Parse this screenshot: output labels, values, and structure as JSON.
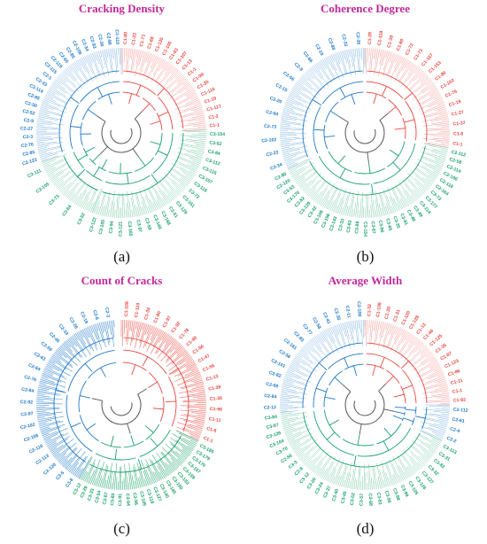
{
  "colors": {
    "title": "#c2289b",
    "red": "#e8463f",
    "blue": "#1e78c8",
    "green": "#19a06c",
    "gray": "#555555"
  },
  "panels": [
    {
      "title": "Cracking Density",
      "tag": "(a)",
      "segments": [
        {
          "color": "red",
          "start": 0,
          "end": 88,
          "fill": true,
          "labels": [
            "C1-80",
            "C1-22",
            "C1-71",
            "C1-68",
            "C1-135",
            "C1-105",
            "C1-63",
            "C1-107",
            "C1-13",
            "C1-1",
            "C1-99",
            "C1-35",
            "C1-116",
            "C1-19",
            "C1-117",
            "C1-2",
            "C1-1"
          ]
        },
        {
          "color": "green",
          "start": 88,
          "end": 200,
          "fill": true,
          "labels": [
            "C3-154",
            "C3-52",
            "C3-84",
            "C3-112",
            "C3-115",
            "C3-107",
            "C3-116",
            "C3-72",
            "C3-161",
            "C3-129",
            "C3-51",
            "C3-168",
            "C3-140",
            "C3-59",
            "C3-97",
            "C3-165",
            "C3-121",
            "C3-94",
            "C3-105",
            "C3-122"
          ]
        },
        {
          "color": "green",
          "start": 200,
          "end": 250,
          "fill": true,
          "labels": [
            "C3-52",
            "C3-64",
            "C3-73",
            "C3-105",
            "C3-111"
          ]
        },
        {
          "color": "blue",
          "start": 250,
          "end": 360,
          "fill": true,
          "labels": [
            "C2-123",
            "C2-85",
            "C2-76",
            "C2-3",
            "C2-27",
            "C2-9",
            "C2-52",
            "C2-50",
            "C2-85",
            "C3-114",
            "C2-33",
            "C2-1",
            "C2-115",
            "C2-119",
            "C2-60",
            "C2-85",
            "C2-108",
            "C2-34",
            "C2-93",
            "C2-30",
            "C2-86",
            "C1-110"
          ]
        }
      ]
    },
    {
      "title": "Coherence Degree",
      "tag": "(b)",
      "segments": [
        {
          "color": "red",
          "start": 0,
          "end": 100,
          "fill": true,
          "labels": [
            "C1-28",
            "C1-118",
            "C1-39",
            "C1-80",
            "C1-72",
            "C1-73",
            "C1-167",
            "C1-153",
            "C1-86",
            "C1-102",
            "C1-76",
            "C1-19",
            "C1-27",
            "C1-37",
            "C1-6",
            "C1-1"
          ]
        },
        {
          "color": "green",
          "start": 100,
          "end": 245,
          "fill": true,
          "labels": [
            "C2-112",
            "C2-58",
            "C2-114",
            "C2-100",
            "C2-116",
            "C2-164",
            "C3-73",
            "C3-177",
            "C3-114",
            "C3-49",
            "C3-48",
            "C3-91",
            "C3-35",
            "C3-65",
            "C3-96",
            "C3-87",
            "C3-154",
            "C3-88",
            "C3-83",
            "C3-33",
            "C3-143",
            "C3-156",
            "C3-106",
            "C3-42",
            "C3-129",
            "C3-82",
            "C3-170",
            "C3-53",
            "C2-120",
            "C2-80"
          ]
        },
        {
          "color": "blue",
          "start": 245,
          "end": 360,
          "fill": true,
          "labels": [
            "C2-34",
            "C2-23",
            "C2-102",
            "C2-73",
            "C2-94",
            "C2-20",
            "C2-15",
            "C2-56",
            "C2-9",
            "C2-66",
            "C2-19",
            "C2-89",
            "C2-33",
            "C2-35"
          ]
        }
      ]
    },
    {
      "title": "Count of Cracks",
      "tag": "(c)",
      "segments": [
        {
          "color": "red",
          "start": 0,
          "end": 115,
          "fill": false,
          "labels": [
            "C1-108",
            "C1-110",
            "C1-35",
            "C1-80",
            "C1-97",
            "C1-92",
            "C1-78",
            "C1-90",
            "C1-56",
            "C1-47",
            "C1-55",
            "C1-13",
            "C1-39",
            "C1-35",
            "C1-96",
            "C1-11",
            "C1-6",
            "C1-1"
          ]
        },
        {
          "color": "green",
          "start": 115,
          "end": 210,
          "fill": false,
          "labels": [
            "C3-185",
            "C3-179",
            "C3-170",
            "C3-157",
            "C3-159",
            "C3-153",
            "C3-150",
            "C3-145",
            "C3-140",
            "C3-127",
            "C3-118",
            "C3-105",
            "C3-96",
            "C3-94",
            "C3-91",
            "C3-85",
            "C3-67",
            "C3-54",
            "C3-33",
            "C3-29",
            "C3-12"
          ]
        },
        {
          "color": "blue",
          "start": 210,
          "end": 355,
          "fill": false,
          "labels": [
            "C3-8",
            "C3-5",
            "C2-120",
            "C2-113",
            "C2-116",
            "C2-108",
            "C2-102",
            "C2-97",
            "C2-92",
            "C2-84",
            "C2-76",
            "C2-64",
            "C2-63",
            "C2-59",
            "C2-45",
            "C2-33",
            "C2-26",
            "C2-19",
            "C2-8",
            "C2-3"
          ]
        }
      ]
    },
    {
      "title": "Average Width",
      "tag": "(d)",
      "segments": [
        {
          "color": "red",
          "start": 0,
          "end": 90,
          "fill": true,
          "labels": [
            "C1-32",
            "C1-106",
            "C1-39",
            "C1-31",
            "C1-120",
            "C1-128",
            "C1-13",
            "C1-46",
            "C1-125",
            "C1-35",
            "C1-87",
            "C1-123",
            "C1-86",
            "C1-11",
            "C1-1",
            "C1-93"
          ]
        },
        {
          "color": "blue",
          "start": 90,
          "end": 115,
          "fill": true,
          "labels": [
            "C2-112",
            "C2-61",
            "C2-4",
            "C2-2"
          ]
        },
        {
          "color": "green",
          "start": 115,
          "end": 265,
          "fill": true,
          "labels": [
            "C3-113",
            "C3-31",
            "C3-82",
            "C3-32",
            "C3-127",
            "C3-126",
            "C3-105",
            "C3-99",
            "C3-98",
            "C3-90",
            "C3-81",
            "C3-68",
            "C3-57",
            "C3-52",
            "C3-45",
            "C3-40",
            "C3-37",
            "C3-24",
            "C3-20",
            "C3-12",
            "C3-8",
            "C3-3",
            "C2-56",
            "C3-70",
            "C3-104",
            "C3-129",
            "C3-97",
            "C3-84"
          ]
        },
        {
          "color": "blue",
          "start": 265,
          "end": 360,
          "fill": true,
          "labels": [
            "C2-12",
            "C2-84",
            "C2-69",
            "C2-82",
            "C2-101",
            "C2-56",
            "C2-161",
            "C2-83",
            "C2-77",
            "C2-58",
            "C2-41",
            "C2-35",
            "C2-11",
            "C2-108"
          ]
        }
      ]
    }
  ]
}
